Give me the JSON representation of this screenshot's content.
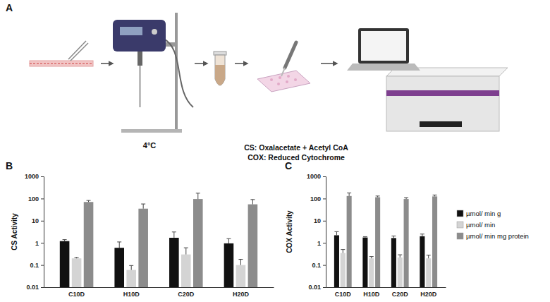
{
  "panel_a": {
    "label": "A",
    "temperature": "4°C",
    "assays": [
      "CS: Oxalacetate + Acetyl CoA",
      "COX: Reduced Cytochrome"
    ]
  },
  "chart_data": [
    {
      "type": "bar",
      "title": "B",
      "y_label": "CS Activity",
      "categories": [
        "C10D",
        "H10D",
        "C20D",
        "H20D"
      ],
      "log": "y",
      "ylim": [
        0.01,
        1000
      ],
      "yticks": [
        0.01,
        0.1,
        1,
        10,
        100,
        1000
      ],
      "series": [
        {
          "color": "#111111",
          "values": [
            1.2,
            0.6,
            1.7,
            0.95
          ],
          "errors": [
            0.2,
            0.5,
            1.4,
            0.6
          ]
        },
        {
          "color": "#d4d4d4",
          "values": [
            0.2,
            0.06,
            0.3,
            0.1
          ],
          "errors": [
            0.02,
            0.035,
            0.3,
            0.08
          ]
        },
        {
          "color": "#8c8c8c",
          "values": [
            70,
            35,
            95,
            55
          ],
          "errors": [
            12,
            22,
            80,
            35
          ]
        }
      ]
    },
    {
      "type": "bar",
      "title": "C",
      "y_label": "COX Activity",
      "categories": [
        "C10D",
        "H10D",
        "C20D",
        "H20D"
      ],
      "log": "y",
      "ylim": [
        0.01,
        1000
      ],
      "yticks": [
        0.01,
        0.1,
        1,
        10,
        100,
        1000
      ],
      "legend": "right",
      "series": [
        {
          "name": "µmol/ min g",
          "color": "#111111",
          "values": [
            2.2,
            1.75,
            1.65,
            2.0
          ],
          "errors": [
            1.0,
            0.15,
            0.4,
            0.5
          ]
        },
        {
          "name": "µmol/ min",
          "color": "#d4d4d4",
          "values": [
            0.35,
            0.2,
            0.22,
            0.2
          ],
          "errors": [
            0.15,
            0.04,
            0.07,
            0.08
          ]
        },
        {
          "name": "µmol/ min mg protein",
          "color": "#8c8c8c",
          "values": [
            130,
            115,
            95,
            125
          ],
          "errors": [
            50,
            15,
            15,
            20
          ]
        }
      ]
    }
  ]
}
